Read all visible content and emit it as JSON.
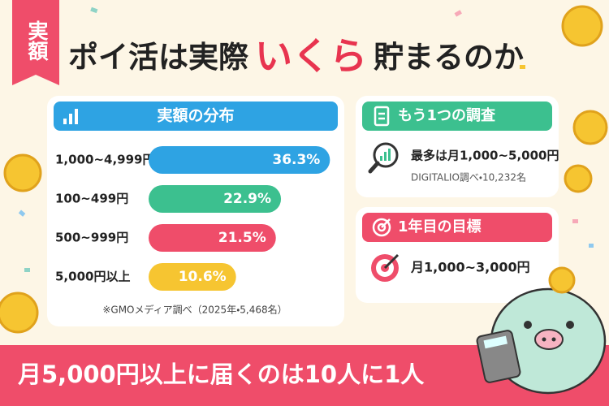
{
  "header": {
    "badge": "実額",
    "title_before": "ポイ活は実際",
    "title_highlight": "いくら",
    "title_after": "貯まるのか"
  },
  "chart_data": {
    "type": "bar",
    "title": "実額の分布",
    "categories": [
      "1,000~4,999円",
      "100~499円",
      "500~999円",
      "5,000円以上"
    ],
    "values": [
      36.3,
      22.9,
      21.5,
      10.6
    ],
    "value_labels": [
      "36.3%",
      "22.9%",
      "21.5%",
      "10.6%"
    ],
    "colors": [
      "#2ea3e3",
      "#3cc08f",
      "#ef4d6a",
      "#f6c531"
    ],
    "note": "※GMOメディア調べ（2025年・5,468名）"
  },
  "survey": {
    "title": "もう1つの調査",
    "main": "最多は月1,000~5,000円",
    "source": "DIGITALIO調べ・10,232名"
  },
  "goal": {
    "title": "1年目の目標",
    "main": "月1,000~3,000円"
  },
  "footer": {
    "text": "月5,000円以上に届くのは10人に1人"
  }
}
